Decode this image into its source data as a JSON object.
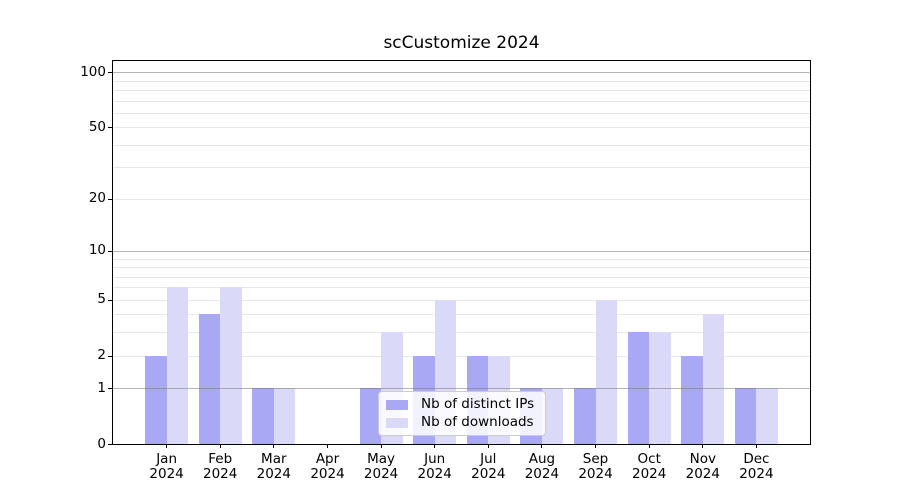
{
  "chart_data": {
    "type": "bar",
    "title": "scCustomize 2024",
    "year": "2024",
    "categories": [
      "Jan",
      "Feb",
      "Mar",
      "Apr",
      "May",
      "Jun",
      "Jul",
      "Aug",
      "Sep",
      "Oct",
      "Nov",
      "Dec"
    ],
    "series": [
      {
        "name": "Nb of distinct IPs",
        "color": "#a8a8f4",
        "values": [
          2,
          4,
          1,
          0,
          1,
          2,
          2,
          1,
          1,
          3,
          2,
          1
        ]
      },
      {
        "name": "Nb of downloads",
        "color": "#dadaf8",
        "values": [
          6,
          6,
          1,
          0,
          3,
          5,
          2,
          1,
          5,
          3,
          4,
          1
        ]
      }
    ],
    "yscale": "log1p",
    "ylim": [
      0,
      115
    ],
    "yticks": [
      0,
      1,
      2,
      5,
      10,
      20,
      50,
      100
    ],
    "gridlines": {
      "major": [
        1,
        10,
        100
      ],
      "minor": [
        2,
        3,
        4,
        5,
        6,
        7,
        8,
        9,
        20,
        30,
        40,
        50,
        60,
        70,
        80,
        90
      ]
    },
    "legend_position": "lower center",
    "grid": true
  }
}
